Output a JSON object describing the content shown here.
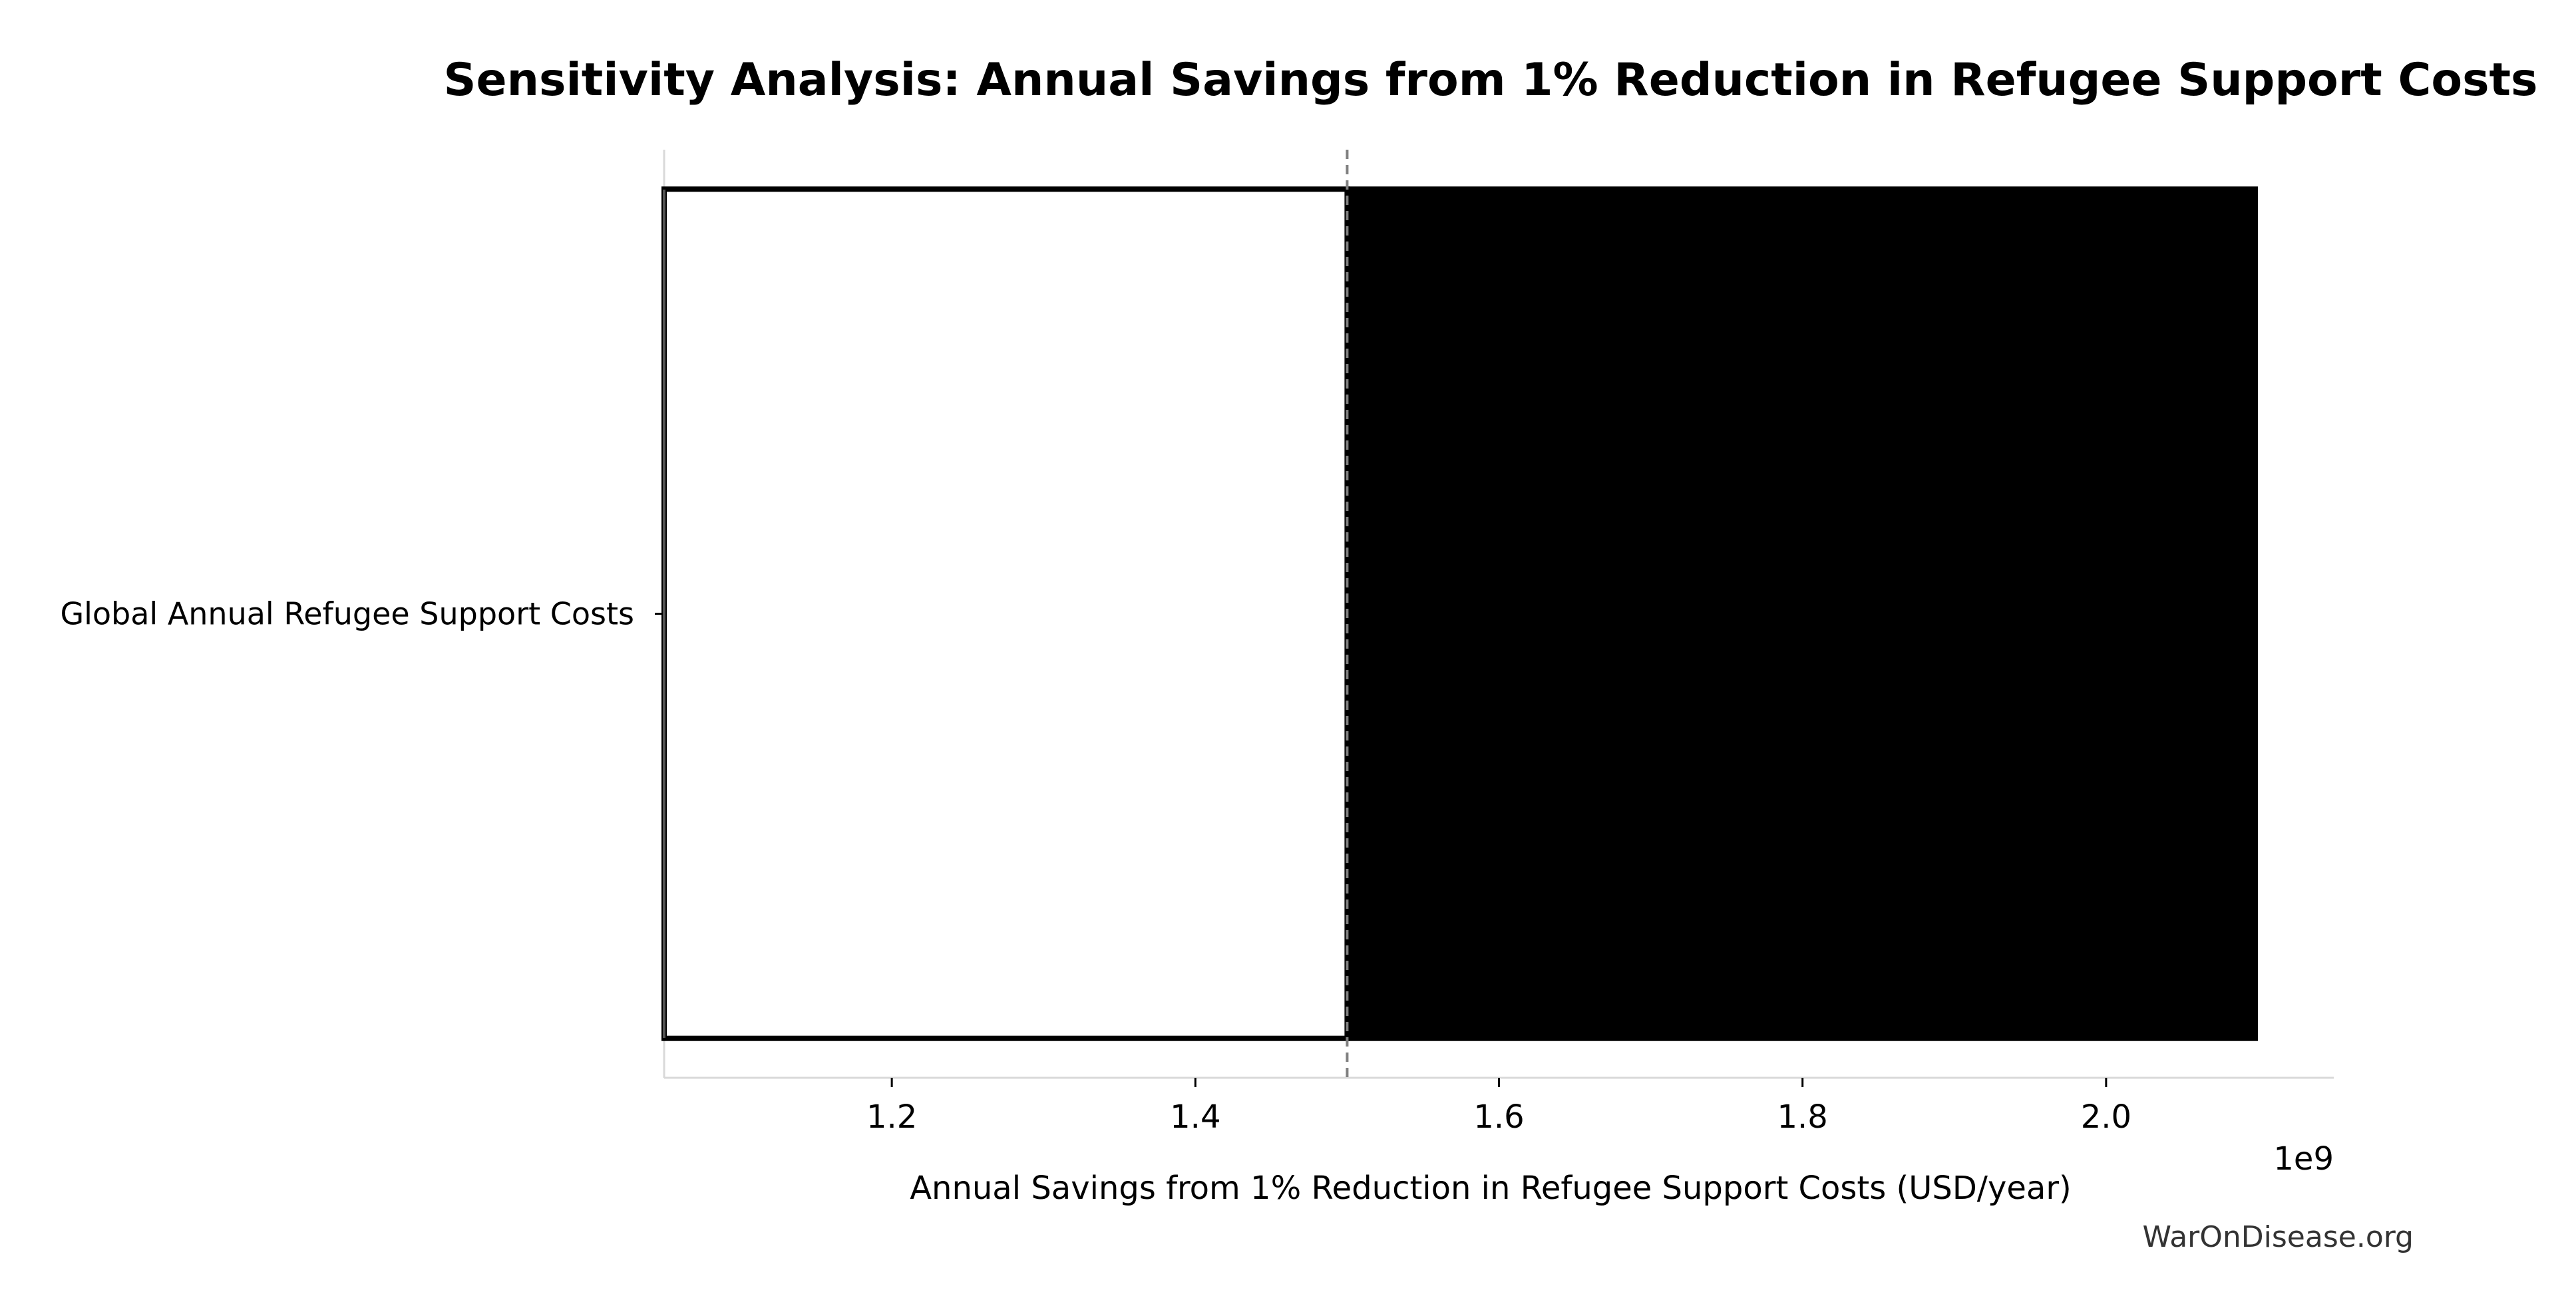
{
  "chart_data": {
    "type": "bar",
    "orientation": "horizontal",
    "variant": "tornado",
    "title": "Sensitivity Analysis: Annual Savings from 1% Reduction in Refugee Support Costs",
    "xlabel": "Annual Savings from 1% Reduction in Refugee Support Costs (USD/year)",
    "ylabel": "",
    "axis_offset_text": "1e9",
    "categories": [
      "Global Annual Refugee Support Costs"
    ],
    "baseline": 1500000000.0,
    "low": [
      1050000000.0
    ],
    "high": [
      2100000000.0
    ],
    "xlim": [
      1050000000.0,
      2150000000.0
    ],
    "x_ticks": [
      1200000000.0,
      1400000000.0,
      1600000000.0,
      1800000000.0,
      2000000000.0
    ],
    "x_tick_labels": [
      "1.2",
      "1.4",
      "1.6",
      "1.8",
      "2.0"
    ],
    "grid": false,
    "legend": "none",
    "colors": {
      "low_fill": "#ffffff",
      "low_edge": "#000000",
      "high_fill": "#000000",
      "baseline_line": "#808080",
      "spine": "#d9d9d9",
      "left_spine": "#555555"
    }
  },
  "watermark": "WarOnDisease.org"
}
